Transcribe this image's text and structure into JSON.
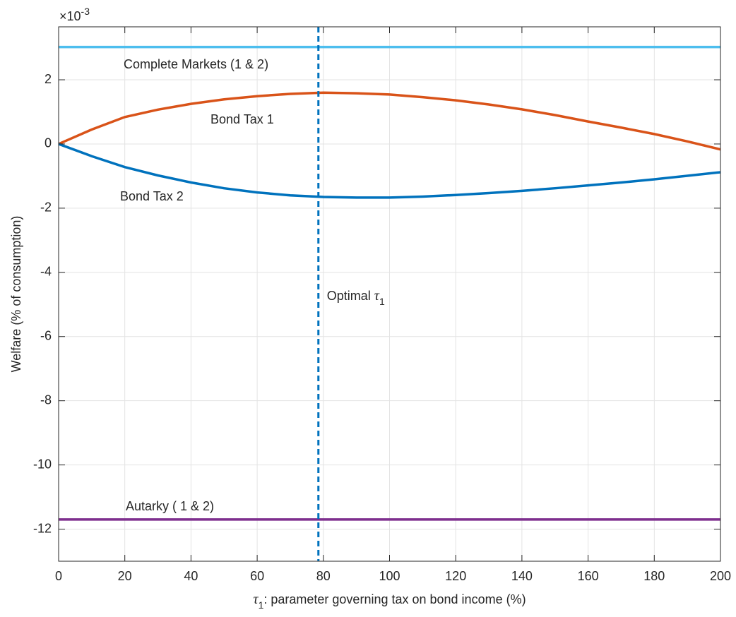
{
  "chart_data": {
    "type": "line",
    "xlabel": {
      "symbol": "τ",
      "subscript": "1",
      "text": ": parameter governing tax on bond income (%)"
    },
    "ylabel": "Welfare (% of consumption)",
    "y_exponent": {
      "base": "×10",
      "power": "-3"
    },
    "x": [
      0,
      10,
      20,
      30,
      40,
      50,
      60,
      70,
      80,
      90,
      100,
      110,
      120,
      130,
      140,
      150,
      160,
      170,
      180,
      190,
      200
    ],
    "series": [
      {
        "name": "Complete Markets (1 & 2)",
        "color": "#4DBEEE",
        "values": [
          3.02,
          3.02,
          3.02,
          3.02,
          3.02,
          3.02,
          3.02,
          3.02,
          3.02,
          3.02,
          3.02,
          3.02,
          3.02,
          3.02,
          3.02,
          3.02,
          3.02,
          3.02,
          3.02,
          3.02,
          3.02
        ]
      },
      {
        "name": "Bond Tax 1",
        "color": "#D95319",
        "values": [
          0,
          0.45,
          0.84,
          1.07,
          1.25,
          1.39,
          1.49,
          1.56,
          1.6,
          1.58,
          1.54,
          1.46,
          1.36,
          1.23,
          1.08,
          0.9,
          0.7,
          0.51,
          0.31,
          0.08,
          -0.17
        ]
      },
      {
        "name": "Bond Tax 2",
        "color": "#0072BD",
        "values": [
          0,
          -0.38,
          -0.72,
          -0.98,
          -1.2,
          -1.38,
          -1.51,
          -1.6,
          -1.65,
          -1.67,
          -1.67,
          -1.64,
          -1.59,
          -1.53,
          -1.46,
          -1.38,
          -1.29,
          -1.2,
          -1.1,
          -0.99,
          -0.88
        ]
      },
      {
        "name": "Autarky ( 1 & 2)",
        "color": "#7E2F8E",
        "values": [
          -11.7,
          -11.7,
          -11.7,
          -11.7,
          -11.7,
          -11.7,
          -11.7,
          -11.7,
          -11.7,
          -11.7,
          -11.7,
          -11.7,
          -11.7,
          -11.7,
          -11.7,
          -11.7,
          -11.7,
          -11.7,
          -11.7,
          -11.7,
          -11.7
        ]
      }
    ],
    "vline": {
      "x": 78.5,
      "color": "#0072BD",
      "label": {
        "text": "Optimal ",
        "symbol": "τ",
        "subscript": "1"
      }
    },
    "xlim": [
      0,
      200
    ],
    "xticks": [
      0,
      20,
      40,
      60,
      80,
      100,
      120,
      140,
      160,
      180,
      200
    ],
    "ylim": [
      -13,
      3.65
    ],
    "yticks": [
      -12,
      -10,
      -8,
      -6,
      -4,
      -2,
      0,
      2
    ],
    "grid": true
  }
}
